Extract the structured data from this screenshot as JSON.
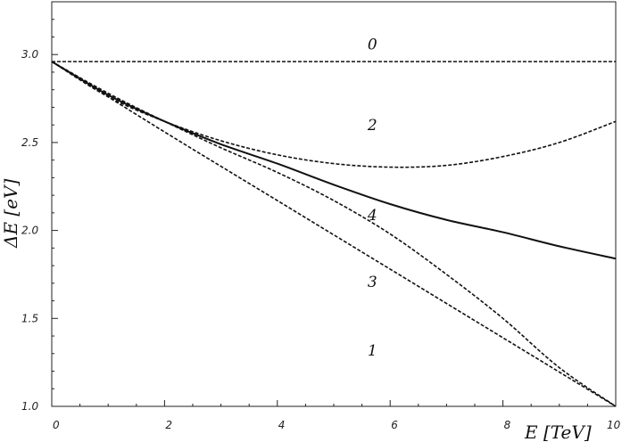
{
  "chart_data": {
    "type": "line",
    "title": "",
    "xlabel": "E [TeV]",
    "ylabel": "ΔE [eV]",
    "xlim": [
      0,
      10
    ],
    "ylim": [
      1.0,
      3.3
    ],
    "x_ticks": [
      "0",
      "2",
      "4",
      "6",
      "8",
      "10"
    ],
    "y_ticks": [
      "1.0",
      "1.5",
      "2.0",
      "2.5",
      "3.0"
    ],
    "grid": false,
    "curve_labels": [
      "0",
      "1",
      "2",
      "3",
      "4"
    ],
    "series": [
      {
        "label": "0",
        "style": "dashed",
        "x": [
          0,
          2,
          4,
          6,
          8,
          10
        ],
        "y": [
          2.96,
          2.96,
          2.96,
          2.96,
          2.96,
          2.96
        ]
      },
      {
        "label": "1",
        "style": "dashed",
        "x": [
          0,
          2,
          4,
          6,
          8,
          10
        ],
        "y": [
          2.96,
          2.56,
          2.17,
          1.78,
          1.39,
          1.0
        ]
      },
      {
        "label": "2",
        "style": "dashed",
        "x": [
          0,
          1,
          2,
          3,
          4,
          5,
          6,
          7,
          8,
          9,
          10
        ],
        "y": [
          2.96,
          2.76,
          2.62,
          2.51,
          2.43,
          2.38,
          2.36,
          2.37,
          2.42,
          2.5,
          2.62
        ]
      },
      {
        "label": "3",
        "style": "dashed",
        "x": [
          0,
          1,
          2,
          3,
          4,
          5,
          6,
          7,
          8,
          9,
          10
        ],
        "y": [
          2.96,
          2.78,
          2.62,
          2.47,
          2.33,
          2.17,
          1.98,
          1.75,
          1.5,
          1.22,
          1.0
        ]
      },
      {
        "label": "4",
        "style": "solid",
        "x": [
          0,
          1,
          2,
          3,
          4,
          5,
          6,
          7,
          8,
          9,
          10
        ],
        "y": [
          2.96,
          2.77,
          2.62,
          2.49,
          2.38,
          2.26,
          2.15,
          2.06,
          1.99,
          1.91,
          1.84
        ]
      }
    ]
  }
}
